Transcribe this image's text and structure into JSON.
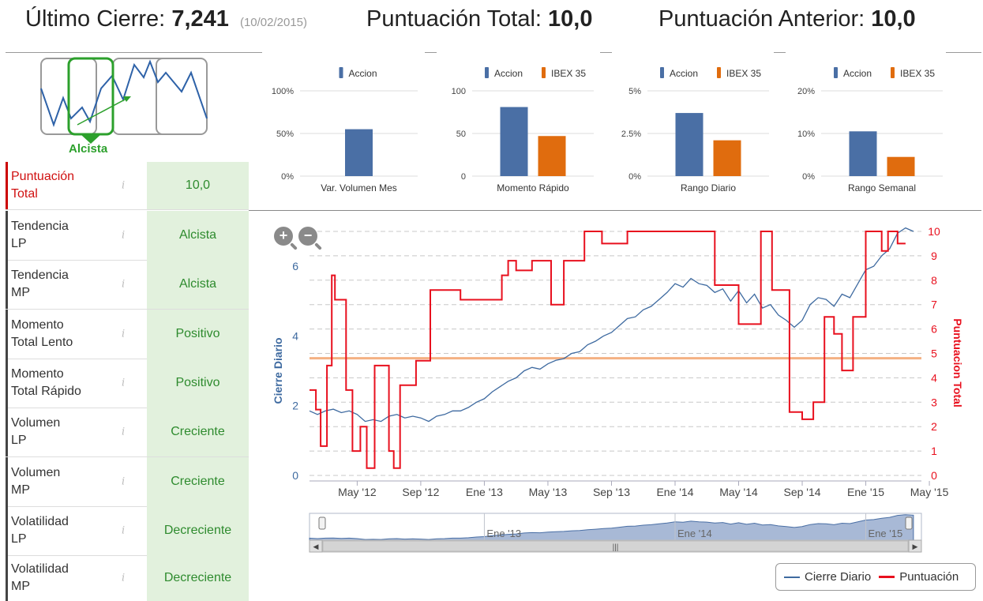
{
  "header": {
    "last_close_label": "Último Cierre:",
    "last_close_value": "7,241",
    "last_close_date": "(10/02/2015)",
    "total_score_label": "Puntuación Total:",
    "total_score_value": "10,0",
    "prev_score_label": "Puntuación Anterior:",
    "prev_score_value": "10,0"
  },
  "trend": {
    "label": "Alcista"
  },
  "scores": [
    {
      "l1": "Puntuación",
      "l2": "Total",
      "value": "10,0",
      "info": "i"
    },
    {
      "l1": "Tendencia",
      "l2": "LP",
      "value": "Alcista",
      "info": "i"
    },
    {
      "l1": "Tendencia",
      "l2": "MP",
      "value": "Alcista",
      "info": "i"
    },
    {
      "l1": "Momento",
      "l2": "Total Lento",
      "value": "Positivo",
      "info": "i"
    },
    {
      "l1": "Momento",
      "l2": "Total Rápido",
      "value": "Positivo",
      "info": "i"
    },
    {
      "l1": "Volumen",
      "l2": "LP",
      "value": "Creciente",
      "info": "i"
    },
    {
      "l1": "Volumen",
      "l2": "MP",
      "value": "Creciente",
      "info": "i"
    },
    {
      "l1": "Volatilidad",
      "l2": "LP",
      "value": "Decreciente",
      "info": "i"
    },
    {
      "l1": "Volatilidad",
      "l2": "MP",
      "value": "Decreciente",
      "info": "i"
    }
  ],
  "colors": {
    "accion": "#4a6fa5",
    "ibex": "#e06c0e",
    "cierre": "#3e6aa0",
    "puntuacion": "#e8101e",
    "threshold": "#f4b183",
    "green": "#2e8b2e"
  },
  "legend": {
    "cierre": "Cierre Diario",
    "puntuacion": "Puntuación"
  },
  "chart_data": [
    {
      "type": "bar",
      "title": "Var. Volumen Mes",
      "legend": [
        "Accion"
      ],
      "yticks": [
        "0%",
        "50%",
        "100%"
      ],
      "ylim": [
        0,
        100
      ],
      "series": [
        {
          "name": "Accion",
          "values": [
            55
          ]
        }
      ]
    },
    {
      "type": "bar",
      "title": "Momento Rápido",
      "legend": [
        "Accion",
        "IBEX 35"
      ],
      "yticks": [
        "0",
        "50",
        "100"
      ],
      "ylim": [
        0,
        100
      ],
      "series": [
        {
          "name": "Accion",
          "values": [
            81
          ]
        },
        {
          "name": "IBEX 35",
          "values": [
            47
          ]
        }
      ]
    },
    {
      "type": "bar",
      "title": "Rango Diario",
      "legend": [
        "Accion",
        "IBEX 35"
      ],
      "yticks": [
        "0%",
        "2.5%",
        "5%"
      ],
      "ylim": [
        0,
        5
      ],
      "series": [
        {
          "name": "Accion",
          "values": [
            3.7
          ]
        },
        {
          "name": "IBEX 35",
          "values": [
            2.1
          ]
        }
      ]
    },
    {
      "type": "bar",
      "title": "Rango Semanal",
      "legend": [
        "Accion",
        "IBEX 35"
      ],
      "yticks": [
        "0%",
        "10%",
        "20%"
      ],
      "ylim": [
        0,
        20
      ],
      "series": [
        {
          "name": "Accion",
          "values": [
            10.5
          ]
        },
        {
          "name": "IBEX 35",
          "values": [
            4.5
          ]
        }
      ]
    },
    {
      "type": "line",
      "title": "",
      "ylabel_left": "Cierre Diario",
      "ylabel_right": "Puntuacion Total",
      "ylim_left": [
        0,
        7
      ],
      "ylim_right": [
        0,
        10
      ],
      "yticks_left": [
        "0",
        "2",
        "4",
        "6"
      ],
      "yticks_right": [
        "0",
        "1",
        "2",
        "3",
        "4",
        "5",
        "6",
        "7",
        "8",
        "9",
        "10"
      ],
      "xticks": [
        "May '12",
        "Sep '12",
        "Ene '13",
        "May '13",
        "Sep '13",
        "Ene '14",
        "May '14",
        "Sep '14",
        "Ene '15",
        "May '15"
      ],
      "x_range_months": [
        0,
        38.5
      ],
      "xtick_months": [
        3,
        7,
        11,
        15,
        19,
        23,
        27,
        31,
        35,
        39
      ],
      "threshold": 4.8,
      "navigator_labels": [
        "Ene '13",
        "Ene '14",
        "Ene '15"
      ],
      "series": [
        {
          "name": "Cierre Diario",
          "x": [
            0,
            0.5,
            1,
            1.5,
            2,
            2.5,
            3,
            3.5,
            4,
            4.5,
            5,
            5.5,
            6,
            6.5,
            7,
            7.5,
            8,
            8.5,
            9,
            9.5,
            10,
            10.5,
            11,
            11.5,
            12,
            12.5,
            13,
            13.5,
            14,
            14.5,
            15,
            15.5,
            16,
            16.5,
            17,
            17.5,
            18,
            18.5,
            19,
            19.5,
            20,
            20.5,
            21,
            21.5,
            22,
            22.5,
            23,
            23.5,
            24,
            24.5,
            25,
            25.5,
            26,
            26.5,
            27,
            27.5,
            28,
            28.5,
            29,
            29.5,
            30,
            30.5,
            31,
            31.5,
            32,
            32.5,
            33,
            33.5,
            34,
            34.5,
            35,
            35.5,
            36,
            36.5,
            37,
            37.5,
            38
          ],
          "values": [
            1.85,
            1.75,
            1.85,
            1.9,
            1.8,
            1.85,
            1.75,
            1.55,
            1.6,
            1.55,
            1.7,
            1.75,
            1.65,
            1.7,
            1.65,
            1.55,
            1.7,
            1.75,
            1.85,
            1.85,
            1.95,
            2.1,
            2.2,
            2.4,
            2.55,
            2.7,
            2.8,
            3.0,
            3.1,
            3.05,
            3.2,
            3.3,
            3.35,
            3.5,
            3.55,
            3.75,
            3.85,
            4.0,
            4.1,
            4.3,
            4.5,
            4.55,
            4.75,
            4.85,
            5.05,
            5.25,
            5.5,
            5.4,
            5.65,
            5.5,
            5.45,
            5.25,
            5.35,
            5.0,
            5.3,
            4.95,
            5.2,
            4.8,
            4.9,
            4.6,
            4.45,
            4.25,
            4.45,
            4.9,
            5.1,
            5.05,
            4.85,
            5.2,
            5.1,
            5.5,
            5.9,
            6.0,
            6.3,
            6.5,
            6.95,
            7.1,
            7.0
          ],
          "color": "#3e6aa0"
        },
        {
          "name": "Puntuación",
          "x": [
            0,
            0.4,
            0.4,
            0.7,
            0.7,
            1.1,
            1.1,
            1.4,
            1.4,
            1.6,
            1.6,
            2.3,
            2.3,
            2.7,
            2.7,
            3.2,
            3.2,
            3.6,
            3.6,
            4.1,
            4.1,
            5.0,
            5.0,
            5.3,
            5.3,
            5.7,
            5.7,
            6.5,
            6.5,
            6.7,
            6.7,
            7.2,
            7.2,
            7.6,
            7.6,
            8.3,
            8.3,
            9.5,
            9.5,
            12.1,
            12.1,
            12.5,
            12.5,
            13.0,
            13.0,
            14.0,
            14.0,
            15.2,
            15.2,
            16.0,
            16.0,
            17.3,
            17.3,
            18.4,
            18.4,
            20.0,
            20.0,
            20.4,
            20.4,
            21.4,
            21.4,
            22.2,
            22.2,
            25.5,
            25.5,
            27.0,
            27.0,
            28.4,
            28.4,
            29.1,
            29.1,
            30.2,
            30.2,
            31.0,
            31.0,
            31.7,
            31.7,
            32.4,
            32.4,
            33.0,
            33.0,
            33.5,
            33.5,
            34.2,
            34.2,
            35.0,
            35.0,
            36.0,
            36.0,
            36.4,
            36.4,
            37.0,
            37.0,
            37.5
          ],
          "values": [
            3.5,
            3.5,
            2.7,
            2.7,
            1.2,
            1.2,
            4.5,
            4.5,
            8.2,
            8.2,
            7.2,
            7.2,
            3.5,
            3.5,
            1.0,
            1.0,
            2.0,
            2.0,
            0.3,
            0.3,
            4.5,
            4.5,
            1.0,
            1.0,
            0.3,
            0.3,
            3.7,
            3.7,
            3.7,
            3.7,
            4.7,
            4.7,
            4.7,
            4.7,
            7.6,
            7.6,
            7.6,
            7.6,
            7.2,
            7.2,
            8.2,
            8.2,
            8.8,
            8.8,
            8.4,
            8.4,
            8.8,
            8.8,
            7.0,
            7.0,
            8.8,
            8.8,
            10.0,
            10.0,
            9.5,
            9.5,
            10.0,
            10.0,
            10.0,
            10.0,
            10.0,
            10.0,
            10.0,
            10.0,
            7.8,
            7.8,
            6.2,
            6.2,
            10.0,
            10.0,
            7.6,
            7.6,
            2.6,
            2.6,
            2.3,
            2.3,
            3.0,
            3.0,
            6.5,
            6.5,
            5.8,
            5.8,
            4.3,
            4.3,
            6.5,
            6.5,
            10.0,
            10.0,
            9.2,
            9.2,
            10.0,
            10.0,
            9.5,
            9.5
          ],
          "color": "#e8101e"
        }
      ]
    }
  ]
}
